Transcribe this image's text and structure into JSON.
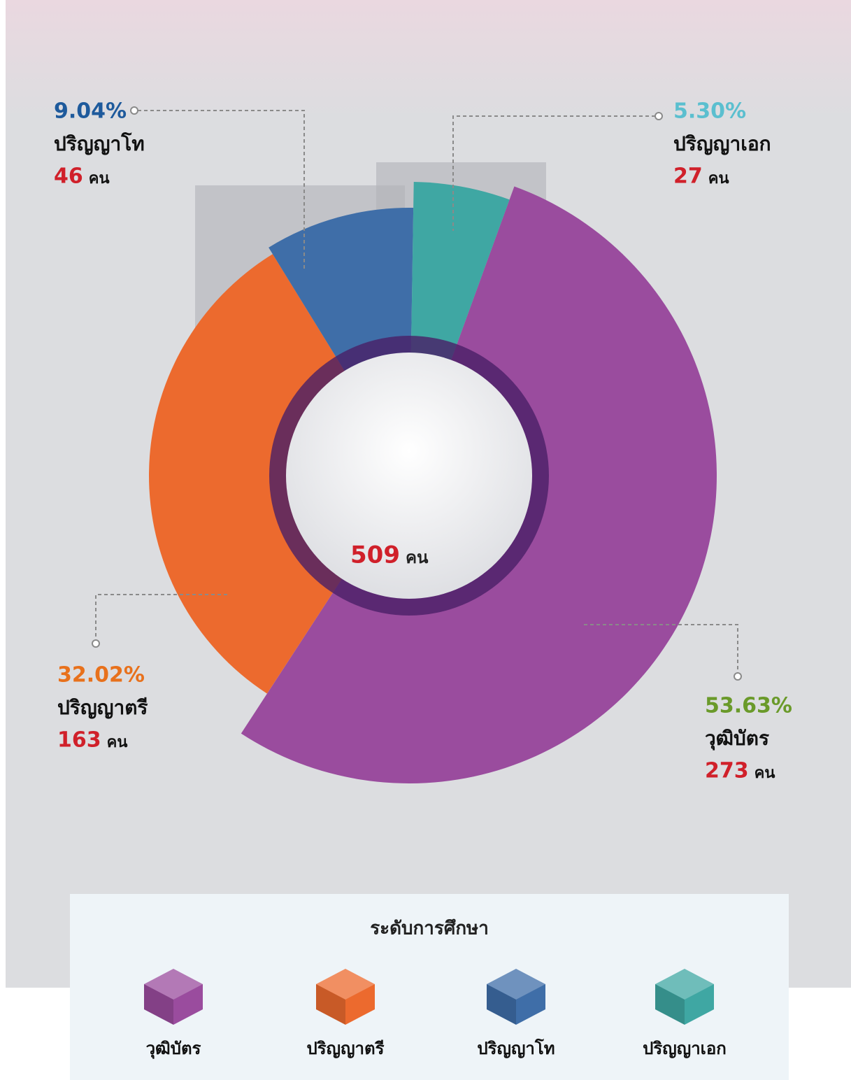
{
  "chart_data": {
    "type": "pie",
    "legend_title": "ระดับการศึกษา",
    "total": 509,
    "unit": "คน",
    "categories": [
      "วุฒิบัตร",
      "ปริญญาตรี",
      "ปริญญาโท",
      "ปริญญาเอก"
    ],
    "values": [
      53.63,
      32.02,
      9.04,
      5.3
    ],
    "value_labels": [
      "53.63%",
      "32.02%",
      "9.04%",
      "5.30%"
    ],
    "counts": [
      273,
      163,
      46,
      27
    ],
    "colors": [
      "#9a4c9e",
      "#ec6a2e",
      "#3f6ea8",
      "#3fa7a3"
    ],
    "label_colors": [
      "#6a9a2a",
      "#e8711c",
      "#1e5a9c",
      "#5bbfcf"
    ]
  }
}
